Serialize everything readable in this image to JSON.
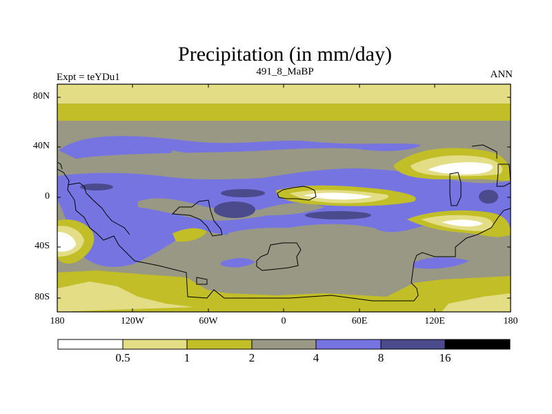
{
  "title": "Precipitation (in mm/day)",
  "subtitle_left": "Expt = teYDu1",
  "subtitle_center": "491_8_MaBP",
  "subtitle_right": "ANN",
  "lat_ticks": [
    "80N",
    "40N",
    "0",
    "40S",
    "80S"
  ],
  "lon_ticks": [
    "180",
    "120W",
    "60W",
    "0",
    "60E",
    "120E",
    "180"
  ],
  "colorbar": {
    "levels": [
      "0.5",
      "1",
      "2",
      "4",
      "8",
      "16"
    ],
    "colors": [
      "#ffffff",
      "#e3de86",
      "#c2be28",
      "#999885",
      "#7574e1",
      "#4a4a8c",
      "#000000"
    ]
  },
  "colors": {
    "land_outline": "#000000",
    "frame": "#000000"
  }
}
